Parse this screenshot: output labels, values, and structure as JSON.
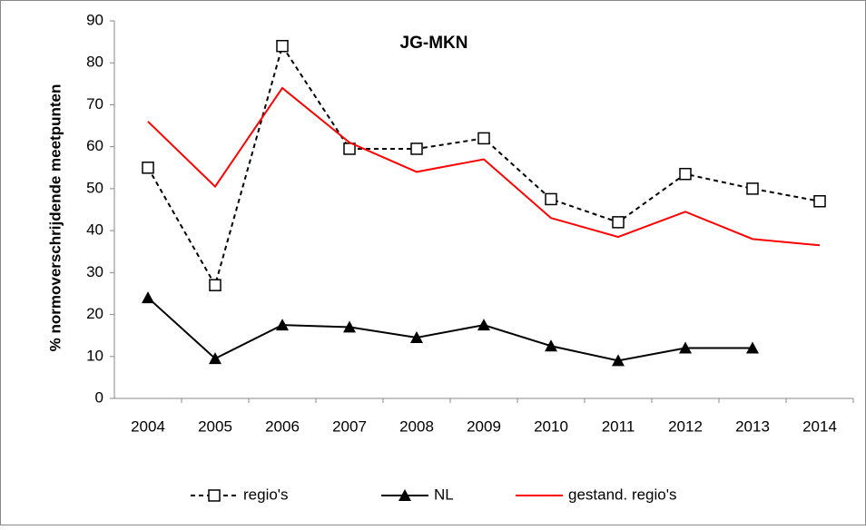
{
  "chart_data": {
    "type": "line",
    "title": "JG-MKN",
    "y_label": "% normoverschrijdende meetpunten",
    "categories": [
      "2004",
      "2005",
      "2006",
      "2007",
      "2008",
      "2009",
      "2010",
      "2011",
      "2012",
      "2013",
      "2014"
    ],
    "series": [
      {
        "name": "regio's",
        "color": "#000000",
        "dash": true,
        "marker": "square",
        "values": [
          55,
          27,
          84,
          59.5,
          59.5,
          62,
          47.5,
          42,
          53.5,
          50,
          47
        ]
      },
      {
        "name": "NL",
        "color": "#000000",
        "dash": false,
        "marker": "triangle",
        "values": [
          24,
          9.5,
          17.5,
          17,
          14.5,
          17.5,
          12.5,
          9,
          12,
          12,
          null
        ]
      },
      {
        "name": "gestand. regio's",
        "color": "#ff0000",
        "dash": false,
        "marker": "none",
        "values": [
          66,
          50.5,
          74,
          61,
          54,
          57,
          43,
          38.5,
          44.5,
          38,
          36.5
        ]
      }
    ],
    "ylim": [
      0,
      90
    ],
    "yticks": [
      0,
      10,
      20,
      30,
      40,
      50,
      60,
      70,
      80,
      90
    ],
    "grid": false,
    "legend": "bottom"
  }
}
